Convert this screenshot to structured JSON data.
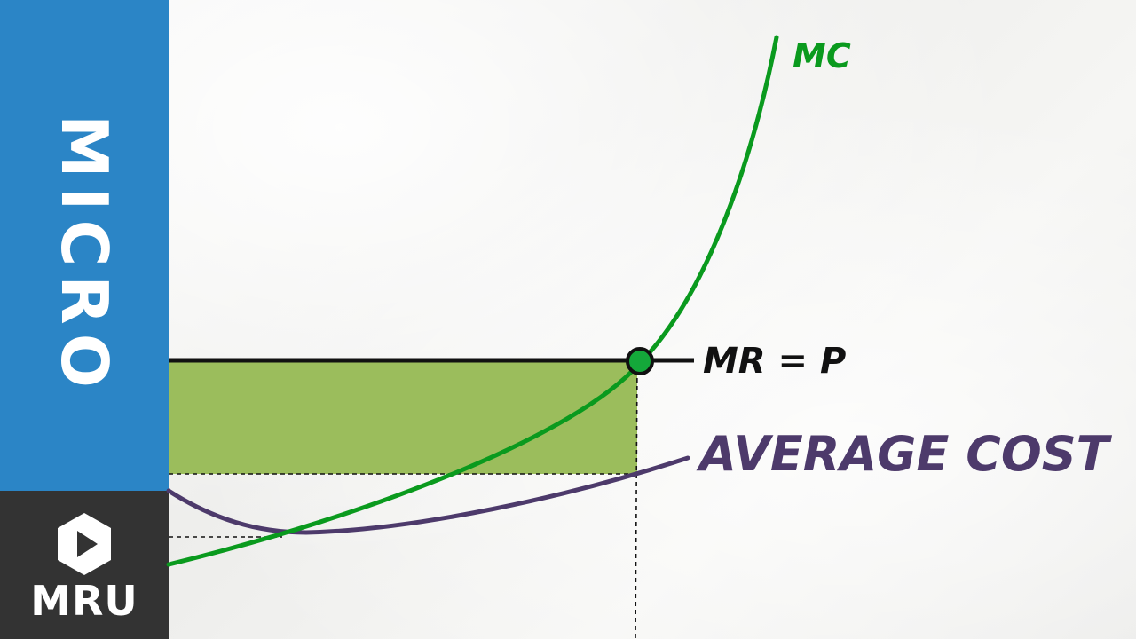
{
  "sidebar": {
    "title": "MICRO",
    "brand": "MRU",
    "logo_icon": "play-hexagon-icon",
    "colors": {
      "top": "#2b85c6",
      "bottom": "#333333"
    }
  },
  "diagram": {
    "labels": {
      "mc": "MC",
      "mr": "MR = P",
      "avg_cost": "AVERAGE COST"
    },
    "colors": {
      "mc": "#0a9a1e",
      "avg_cost": "#4d3a6b",
      "mr": "#111111",
      "profit_area": "#9bbd5c",
      "equilibrium_point": "#14a83a"
    }
  }
}
